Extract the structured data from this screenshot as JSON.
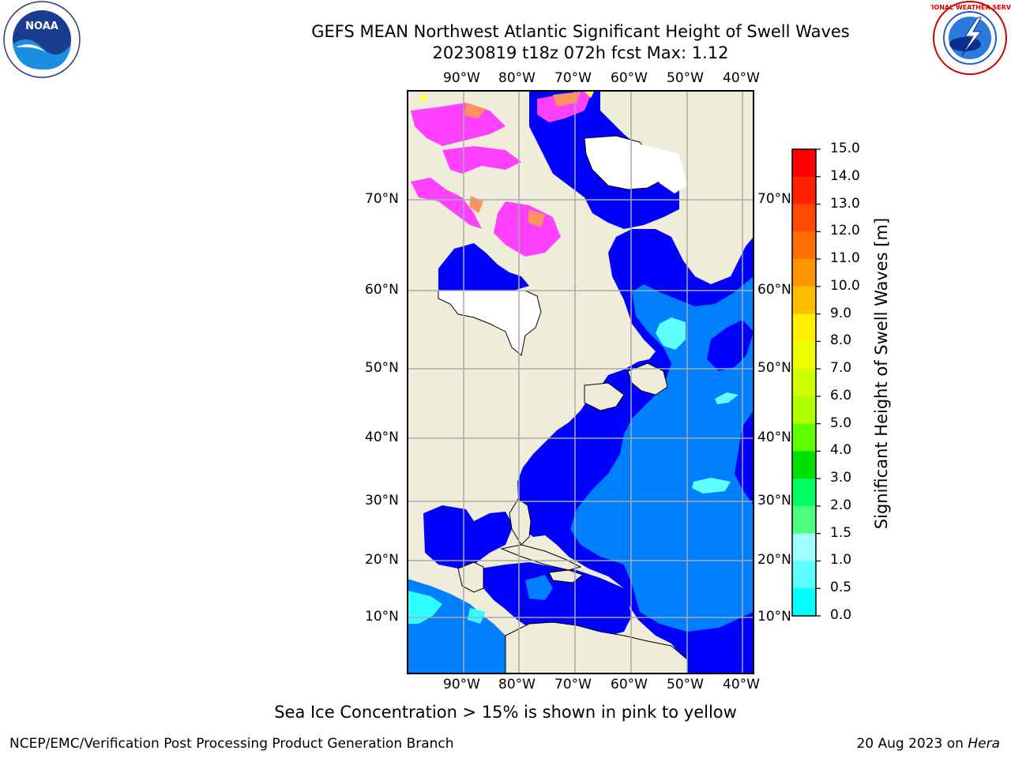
{
  "header": {
    "title_line1": "GEFS MEAN Northwest Atlantic Significant Height of Swell Waves",
    "title_line2": "20230819 t18z 072h fcst   Max: 1.12"
  },
  "logos": {
    "left": {
      "name": "NOAA",
      "ring_text": "NATIONAL OCEANIC AND ATMOSPHERIC ADMINISTRATION · U.S. DEPARTMENT OF COMMERCE"
    },
    "right": {
      "ring_text": "NATIONAL WEATHER SERVICE"
    }
  },
  "map": {
    "lon_labels": [
      "90°W",
      "80°W",
      "70°W",
      "60°W",
      "50°W",
      "40°W"
    ],
    "lat_labels": [
      "70°N",
      "60°N",
      "50°N",
      "40°N",
      "30°N",
      "20°N",
      "10°N"
    ],
    "colors": {
      "land": "#efedda",
      "ocean_low": "#0000ff",
      "ocean_mid": "#0080ff",
      "cyan": "#00ffff",
      "light_cyan": "#60ffff",
      "ice_pink": "#ff40ff",
      "ice_orange": "#ff9060",
      "ice_yellow": "#ffff40",
      "grid": "#aaaaaa"
    }
  },
  "colorbar": {
    "ticks": [
      "15.0",
      "14.0",
      "13.0",
      "12.0",
      "11.0",
      "10.0",
      "9.0",
      "8.0",
      "7.0",
      "6.0",
      "5.0",
      "4.0",
      "3.0",
      "2.0",
      "1.5",
      "1.0",
      "0.5",
      "0.0"
    ],
    "colors": [
      "#ff0000",
      "#ff2000",
      "#ff4a00",
      "#ff7000",
      "#ff9400",
      "#ffbe00",
      "#fff000",
      "#f0ff00",
      "#d0ff00",
      "#b0ff00",
      "#60ff00",
      "#00e000",
      "#00ff60",
      "#50ff80",
      "#a0ffff",
      "#60ffff",
      "#00ffff",
      "#0080ff",
      "#0000ff"
    ],
    "label": "Significant Height of Swell Waves [m]"
  },
  "caption": "Sea Ice Concentration > 15% is shown in pink to yellow",
  "footer": {
    "left": "NCEP/EMC/Verification Post Processing Product Generation Branch",
    "right_date": "20 Aug 2023 on",
    "right_host": "Hera"
  }
}
